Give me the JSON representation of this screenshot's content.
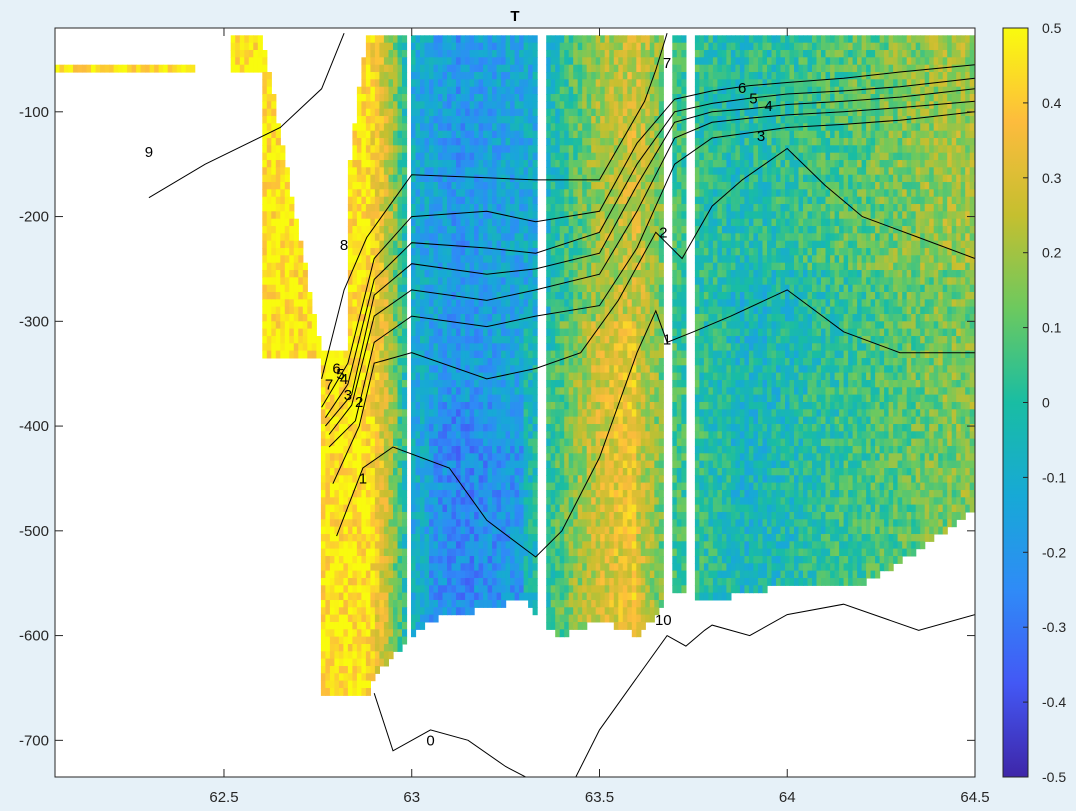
{
  "chart_data": {
    "type": "heatmap",
    "title": "T",
    "xlabel": "",
    "ylabel": "",
    "xlim": [
      62.05,
      64.5
    ],
    "ylim": [
      -735,
      -20
    ],
    "xticks": [
      "62.5",
      "63",
      "63.5",
      "64",
      "64.5"
    ],
    "xtick_values": [
      62.5,
      63,
      63.5,
      64,
      64.5
    ],
    "yticks": [
      "-100",
      "-200",
      "-300",
      "-400",
      "-500",
      "-600",
      "-700"
    ],
    "ytick_values": [
      -100,
      -200,
      -300,
      -400,
      -500,
      -600,
      -700
    ],
    "grid": false,
    "colormap": "parula",
    "colorbar": {
      "range": [
        -0.5,
        0.5
      ],
      "ticks": [
        "0.5",
        "0.4",
        "0.3",
        "0.2",
        "0.1",
        "0",
        "-0.1",
        "-0.2",
        "-0.3",
        "-0.4",
        "-0.5"
      ],
      "tick_values": [
        0.5,
        0.4,
        0.3,
        0.2,
        0.1,
        0,
        -0.1,
        -0.2,
        -0.3,
        -0.4,
        -0.5
      ],
      "colors": [
        "#3e26a8",
        "#4358f5",
        "#2f8bf7",
        "#17a9d6",
        "#19bda3",
        "#6cc95f",
        "#c5bf2f",
        "#fdbc3d",
        "#f9fb0e"
      ]
    },
    "bottom_boundary": {
      "x": [
        62.88,
        62.9,
        62.95,
        63.0,
        63.05,
        63.1,
        63.2,
        63.3,
        63.35,
        63.4,
        63.5,
        63.6,
        63.7,
        63.8,
        63.9,
        64.0,
        64.1,
        64.2,
        64.3,
        64.4,
        64.5
      ],
      "y": [
        -660,
        -640,
        -620,
        -600,
        -585,
        -580,
        -575,
        -565,
        -590,
        -600,
        -585,
        -600,
        -560,
        -565,
        -560,
        -550,
        -555,
        -550,
        -530,
        -505,
        -480
      ]
    },
    "gaps_x": [
      [
        62.42,
        62.44
      ],
      [
        62.47,
        62.49
      ],
      [
        62.99,
        63.0
      ],
      [
        63.34,
        63.36
      ],
      [
        63.67,
        63.69
      ],
      [
        63.73,
        63.76
      ],
      [
        63.81,
        63.82
      ]
    ],
    "contours": [
      {
        "label": "9",
        "x": [
          62.3,
          62.45,
          62.65,
          62.76,
          62.82
        ],
        "y": [
          -182,
          -150,
          -115,
          -78,
          -25
        ]
      },
      {
        "label": "8",
        "x": [
          62.76,
          62.82,
          62.88,
          62.95,
          63.0,
          63.2,
          63.33,
          63.5,
          63.62,
          63.65,
          63.68
        ],
        "y": [
          -355,
          -270,
          -220,
          -185,
          -160,
          -163,
          -165,
          -165,
          -90,
          -60,
          -25
        ]
      },
      {
        "label": "7",
        "x": [
          62.76,
          62.83,
          62.9,
          63.0,
          63.2,
          63.33,
          63.5,
          63.6,
          63.7,
          63.8,
          63.9,
          64.0,
          64.15,
          64.3,
          64.5
        ],
        "y": [
          -382,
          -340,
          -240,
          -200,
          -195,
          -205,
          -195,
          -130,
          -88,
          -80,
          -75,
          -72,
          -68,
          -62,
          -55
        ]
      },
      {
        "label": "6",
        "x": [
          62.77,
          62.83,
          62.9,
          63.0,
          63.2,
          63.33,
          63.5,
          63.6,
          63.7,
          63.8,
          63.9,
          64.0,
          64.15,
          64.3,
          64.5
        ],
        "y": [
          -392,
          -360,
          -260,
          -225,
          -230,
          -235,
          -215,
          -150,
          -100,
          -92,
          -87,
          -83,
          -80,
          -76,
          -68
        ]
      },
      {
        "label": "5",
        "x": [
          62.77,
          62.84,
          62.9,
          63.0,
          63.2,
          63.33,
          63.5,
          63.6,
          63.7,
          63.8,
          63.9,
          64.0,
          64.15,
          64.3,
          64.5
        ],
        "y": [
          -400,
          -370,
          -275,
          -245,
          -255,
          -250,
          -235,
          -170,
          -110,
          -100,
          -97,
          -93,
          -90,
          -86,
          -78
        ]
      },
      {
        "label": "4",
        "x": [
          62.78,
          62.84,
          62.9,
          63.0,
          63.2,
          63.33,
          63.5,
          63.6,
          63.7,
          63.8,
          63.9,
          64.0,
          64.15,
          64.3,
          64.5
        ],
        "y": [
          -408,
          -380,
          -295,
          -270,
          -280,
          -270,
          -255,
          -195,
          -125,
          -110,
          -106,
          -103,
          -100,
          -96,
          -90
        ]
      },
      {
        "label": "3",
        "x": [
          62.78,
          62.85,
          62.9,
          63.0,
          63.2,
          63.33,
          63.5,
          63.6,
          63.7,
          63.8,
          63.9,
          64.0,
          64.15,
          64.3,
          64.5
        ],
        "y": [
          -420,
          -395,
          -320,
          -295,
          -305,
          -295,
          -285,
          -230,
          -150,
          -125,
          -120,
          -115,
          -112,
          -108,
          -100
        ]
      },
      {
        "label": "2",
        "x": [
          62.79,
          62.86,
          62.9,
          63.0,
          63.2,
          63.33,
          63.45,
          63.55,
          63.65,
          63.72,
          63.8,
          63.88,
          64.0,
          64.1,
          64.2,
          64.35,
          64.5
        ],
        "y": [
          -455,
          -400,
          -340,
          -330,
          -355,
          -345,
          -330,
          -280,
          -215,
          -240,
          -190,
          -165,
          -135,
          -170,
          -200,
          -220,
          -240
        ]
      },
      {
        "label": "1",
        "x": [
          62.8,
          62.87,
          62.95,
          63.1,
          63.2,
          63.33,
          63.4,
          63.5,
          63.6,
          63.65,
          63.68,
          63.75,
          63.85,
          64.0,
          64.15,
          64.3,
          64.5
        ],
        "y": [
          -505,
          -440,
          -420,
          -440,
          -490,
          -525,
          -500,
          -430,
          -330,
          -290,
          -320,
          -310,
          -295,
          -270,
          -310,
          -330,
          -330
        ]
      },
      {
        "label": "0",
        "x": [
          62.9,
          62.95,
          63.05,
          63.15,
          63.25,
          63.33
        ],
        "y": [
          -655,
          -710,
          -690,
          -700,
          -725,
          -740
        ]
      },
      {
        "label": "0",
        "x": [
          63.43,
          63.5,
          63.6,
          63.68,
          63.73,
          63.78,
          63.8,
          63.9,
          64.0,
          64.15,
          64.35,
          64.5
        ],
        "y": [
          -740,
          -690,
          -640,
          -600,
          -610,
          -595,
          -590,
          -600,
          -580,
          -570,
          -595,
          -580
        ]
      }
    ],
    "contour_label_positions": [
      {
        "text": "9",
        "x": 62.3,
        "y": -143
      },
      {
        "text": "8",
        "x": 62.82,
        "y": -232
      },
      {
        "text": "7",
        "x": 62.78,
        "y": -365
      },
      {
        "text": "6",
        "x": 62.8,
        "y": -350
      },
      {
        "text": "5",
        "x": 62.81,
        "y": -355
      },
      {
        "text": "4",
        "x": 62.82,
        "y": -360
      },
      {
        "text": "3",
        "x": 62.83,
        "y": -375
      },
      {
        "text": "2",
        "x": 62.86,
        "y": -382
      },
      {
        "text": "1",
        "x": 62.87,
        "y": -455
      },
      {
        "text": "0",
        "x": 63.05,
        "y": -705
      },
      {
        "text": "10",
        "x": 63.67,
        "y": -590
      },
      {
        "text": "7",
        "x": 63.68,
        "y": -58
      },
      {
        "text": "6",
        "x": 63.88,
        "y": -82
      },
      {
        "text": "5",
        "x": 63.91,
        "y": -92
      },
      {
        "text": "4",
        "x": 63.95,
        "y": -99
      },
      {
        "text": "3",
        "x": 63.93,
        "y": -128
      },
      {
        "text": "2",
        "x": 63.67,
        "y": -220
      },
      {
        "text": "1",
        "x": 63.68,
        "y": -322
      }
    ]
  }
}
